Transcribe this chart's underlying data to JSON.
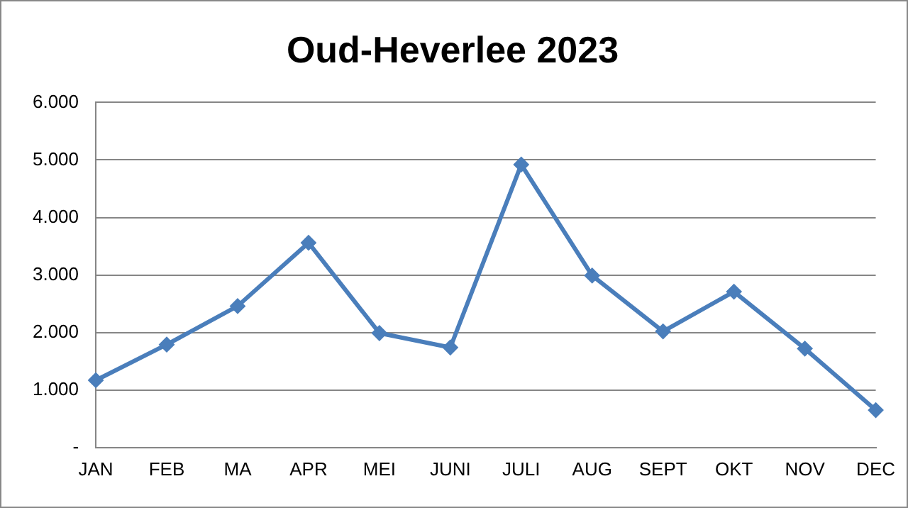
{
  "chart_data": {
    "type": "line",
    "title": "Oud-Heverlee 2023",
    "categories": [
      "JAN",
      "FEB",
      "MA",
      "APR",
      "MEI",
      "JUNI",
      "JULI",
      "AUG",
      "SEPT",
      "OKT",
      "NOV",
      "DEC"
    ],
    "series": [
      {
        "color": "#4a7ebb",
        "values": [
          1170,
          1790,
          2460,
          3560,
          1990,
          1740,
          4920,
          2990,
          2020,
          2710,
          1720,
          650
        ]
      }
    ],
    "ylim": [
      0,
      6000
    ],
    "yticks": [
      {
        "value": 0,
        "label": "-"
      },
      {
        "value": 1000,
        "label": "1.000"
      },
      {
        "value": 2000,
        "label": "2.000"
      },
      {
        "value": 3000,
        "label": "3.000"
      },
      {
        "value": 4000,
        "label": "4.000"
      },
      {
        "value": 5000,
        "label": "5.000"
      },
      {
        "value": 6000,
        "label": "6.000"
      }
    ],
    "grid": "y",
    "legend": false,
    "marker": "diamond",
    "line_style": "solid"
  }
}
